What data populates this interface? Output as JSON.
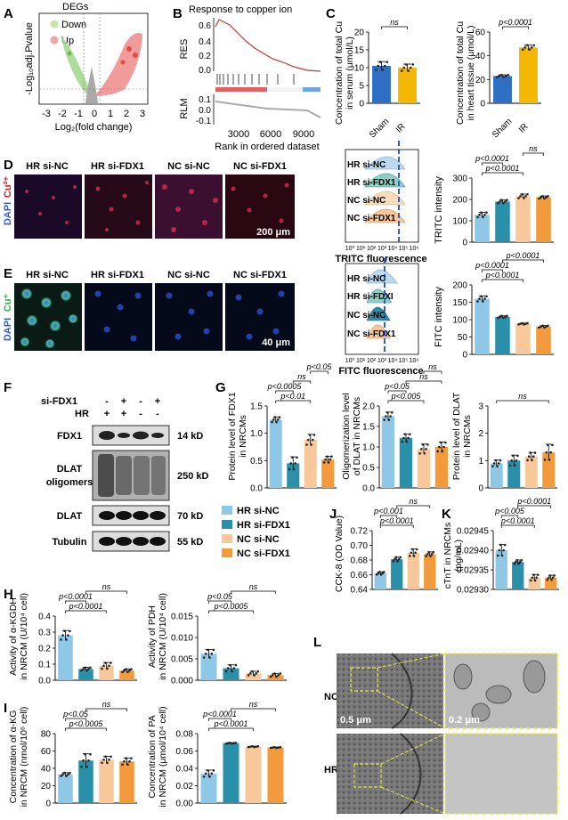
{
  "panels": {
    "A": {
      "letter": "A",
      "title": "DEGs",
      "legend": [
        {
          "label": "Down",
          "color": "#c3e6a3"
        },
        {
          "label": "Up",
          "color": "#f4a3a3"
        }
      ],
      "xlabel": "Log₂(fold change)",
      "ylabel": "-Log₁₀adj.Pvalue",
      "xticks": [
        "-3",
        "-2",
        "-1",
        "0",
        "1",
        "2",
        "3"
      ]
    },
    "B": {
      "letter": "B",
      "title": "Response to copper ion",
      "res_label": "RES",
      "rlm_label": "RLM",
      "res_ticks": [
        "0.6",
        "0.4",
        "0.2",
        "0.0"
      ],
      "rlm_ticks": [
        "0.1",
        "0.0",
        "-0.1"
      ],
      "xticks": [
        "3000",
        "6000",
        "9000"
      ],
      "xlabel": "Rank in ordered dataset"
    },
    "C": {
      "letter": "C",
      "left": {
        "ylabel1": "Concentration of total Cu",
        "ylabel2": "in serum (μmol/L)",
        "yticks": [
          "0",
          "5",
          "10",
          "15",
          "20"
        ],
        "sig": "ns"
      },
      "right": {
        "ylabel1": "Concentration of total Cu",
        "ylabel2": "in heart tissue (μmol/L)",
        "yticks": [
          "0",
          "20",
          "40",
          "60"
        ],
        "sig": "p<0.0001"
      },
      "groups": [
        "Sham",
        "IR"
      ]
    },
    "D": {
      "letter": "D",
      "stain": "Cu²⁺",
      "dapi": "DAPI",
      "images": [
        "HR si-NC",
        "HR si-FDX1",
        "NC si-NC",
        "NC si-FDX1"
      ],
      "scale": "200 μm",
      "flow_labels": [
        "HR si-NC",
        "HR si-FDX1",
        "NC si-NC",
        "NC si-FDX1"
      ],
      "flow_xlabel": "TRITC fluorescence",
      "flow_ticks": [
        "10⁰",
        "10¹",
        "10²",
        "10³",
        "10⁴",
        "10⁵",
        "10⁶"
      ],
      "bar_ylabel": "TRITC intensity",
      "bar_yticks": [
        "0",
        "100",
        "200",
        "300"
      ],
      "sigs": [
        "p<0.0001",
        "p<0.0001",
        "ns"
      ]
    },
    "E": {
      "letter": "E",
      "stain": "Cu⁺",
      "dapi": "DAPI",
      "images": [
        "HR si-NC",
        "HR si-FDX1",
        "NC si-NC",
        "NC si-FDX1"
      ],
      "scale": "40 μm",
      "flow_labels": [
        "HR si-NC",
        "HR si-FDXI",
        "NC si-NC",
        "NC si-FDX1"
      ],
      "flow_xlabel": "FITC fluorescence",
      "flow_ticks": [
        "10⁰",
        "10¹",
        "10²",
        "10³",
        "10⁴",
        "10⁵",
        "10⁶"
      ],
      "bar_ylabel": "FITC intensity",
      "bar_yticks": [
        "0",
        "50",
        "100",
        "150",
        "200"
      ],
      "sigs": [
        "p<0.0001",
        "p<0.0001",
        "p<0.0001"
      ]
    },
    "F": {
      "letter": "F",
      "row1": "si-FDX1",
      "row2": "HR",
      "row1_signs": [
        "-",
        "+",
        "-",
        "+"
      ],
      "row2_signs": [
        "+",
        "+",
        "-",
        "-"
      ],
      "blots": [
        {
          "label": "FDX1",
          "kd": "14 kD"
        },
        {
          "label": "DLAT oligomers",
          "kd": "250 kD"
        },
        {
          "label": "DLAT",
          "kd": "70 kD"
        },
        {
          "label": "Tubulin",
          "kd": "55 kD"
        }
      ]
    },
    "G": {
      "letter": "G",
      "c1": {
        "ylabel1": "Protein level of FDX1",
        "ylabel2": "in NRCMs",
        "yticks": [
          "0.0",
          "0.5",
          "1.0",
          "1.5"
        ],
        "sigs": [
          "p<0.01",
          "p<0.0005",
          "ns",
          "p<0.05"
        ]
      },
      "c2": {
        "ylabel1": "Oligomerization level",
        "ylabel2": "of DLAT in NRCMs",
        "yticks": [
          "0.0",
          "0.5",
          "1.0",
          "1.5",
          "2.0"
        ],
        "sigs": [
          "p<0.005",
          "p<0.05",
          "ns",
          "ns"
        ]
      },
      "c3": {
        "ylabel1": "Protein level of DLAT",
        "ylabel2": "in NRCMs",
        "yticks": [
          "0",
          "1",
          "2",
          "3"
        ],
        "sigs": [
          "ns"
        ]
      }
    },
    "legend": [
      {
        "label": "HR si-NC",
        "color": "#8ec8e6"
      },
      {
        "label": "HR si-FDX1",
        "color": "#2a8fa8"
      },
      {
        "label": "NC si-NC",
        "color": "#f8c89a"
      },
      {
        "label": "NC si-FDX1",
        "color": "#f29a3c"
      }
    ],
    "J": {
      "letter": "J",
      "ylabel": "CCK-8 (OD Value)",
      "yticks": [
        "0.64",
        "0.66",
        "0.68",
        "0.70",
        "0.72"
      ],
      "sigs": [
        "p<0.0001",
        "p<0.001",
        "ns"
      ]
    },
    "K": {
      "letter": "K",
      "ylabel1": "cTnT in NRCMs",
      "ylabel2": "(pg/mL)",
      "yticks": [
        "0.02930",
        "0.02935",
        "0.02940",
        "0.02945"
      ],
      "sigs": [
        "p<0.0001",
        "p<0.005",
        "p<0.0001"
      ]
    },
    "H": {
      "letter": "H",
      "c1": {
        "ylabel1": "Activity of α-KGDH",
        "ylabel2": "in NRCM (U/10⁴ cell)",
        "yticks": [
          "0.0",
          "0.1",
          "0.2",
          "0.3",
          "0.4"
        ],
        "sigs": [
          "p<0.0001",
          "p<0.0001",
          "ns"
        ]
      },
      "c2": {
        "ylabel1": "Activity of PDH",
        "ylabel2": "in NRCM (U/10⁴ cell)",
        "yticks": [
          "0.000",
          "0.005",
          "0.010",
          "0.015"
        ],
        "sigs": [
          "p<0.0005",
          "p<0.05",
          "ns"
        ]
      }
    },
    "I": {
      "letter": "I",
      "c1": {
        "ylabel1": "Concentration of α-KG",
        "ylabel2": "in NRCM (nmol/10⁶ cell)",
        "yticks": [
          "0",
          "20",
          "40",
          "60",
          "80"
        ],
        "sigs": [
          "p<0.0005",
          "p<0.05",
          "ns"
        ]
      },
      "c2": {
        "ylabel1": "Concentration of PA",
        "ylabel2": "in NRCM (μmol/10⁴ cell)",
        "yticks": [
          "0.00",
          "0.02",
          "0.04",
          "0.06",
          "0.08"
        ],
        "sigs": [
          "p<0.0001",
          "p<0.0001",
          "ns"
        ]
      }
    },
    "L": {
      "letter": "L",
      "rows": [
        "NC",
        "HR"
      ],
      "scales": [
        "0.5 μm",
        "0.2 μm"
      ]
    }
  },
  "chart_data": [
    {
      "id": "C-serum",
      "type": "bar",
      "categories": [
        "Sham",
        "IR"
      ],
      "values": [
        10.5,
        10.0
      ],
      "errors": [
        1.2,
        1.0
      ],
      "ylim": [
        0,
        20
      ],
      "colors": [
        "#2e6fc4",
        "#f5b800"
      ]
    },
    {
      "id": "C-heart",
      "type": "bar",
      "categories": [
        "Sham",
        "IR"
      ],
      "values": [
        23,
        47
      ],
      "errors": [
        1,
        2
      ],
      "ylim": [
        0,
        60
      ],
      "colors": [
        "#2e6fc4",
        "#f5b800"
      ]
    },
    {
      "id": "D-TRITC",
      "type": "bar",
      "categories": [
        "HR si-NC",
        "HR si-FDX1",
        "NC si-NC",
        "NC si-FDX1"
      ],
      "values": [
        128,
        190,
        215,
        210
      ],
      "errors": [
        12,
        8,
        10,
        6
      ],
      "ylim": [
        0,
        300
      ]
    },
    {
      "id": "E-FITC",
      "type": "bar",
      "categories": [
        "HR si-NC",
        "HR si-FDX1",
        "NC si-NC",
        "NC si-FDX1"
      ],
      "values": [
        160,
        108,
        88,
        80
      ],
      "errors": [
        8,
        3,
        2,
        3
      ],
      "ylim": [
        0,
        200
      ]
    },
    {
      "id": "G-FDX1",
      "type": "bar",
      "categories": [
        "HR si-NC",
        "HR si-FDX1",
        "NC si-NC",
        "NC si-FDX1"
      ],
      "values": [
        1.25,
        0.45,
        0.88,
        0.52
      ],
      "errors": [
        0.05,
        0.12,
        0.1,
        0.06
      ],
      "ylim": [
        0,
        1.5
      ]
    },
    {
      "id": "G-DLATolig",
      "type": "bar",
      "categories": [
        "HR si-NC",
        "HR si-FDX1",
        "NC si-NC",
        "NC si-FDX1"
      ],
      "values": [
        1.75,
        1.22,
        0.95,
        1.0
      ],
      "errors": [
        0.1,
        0.1,
        0.12,
        0.12
      ],
      "ylim": [
        0,
        2.0
      ]
    },
    {
      "id": "G-DLAT",
      "type": "bar",
      "categories": [
        "HR si-NC",
        "HR si-FDX1",
        "NC si-NC",
        "NC si-FDX1"
      ],
      "values": [
        0.9,
        1.0,
        1.15,
        1.3
      ],
      "errors": [
        0.12,
        0.2,
        0.15,
        0.3
      ],
      "ylim": [
        0,
        3
      ]
    },
    {
      "id": "J-CCK8",
      "type": "bar",
      "categories": [
        "HR si-NC",
        "HR si-FDX1",
        "NC si-NC",
        "NC si-FDX1"
      ],
      "values": [
        0.662,
        0.681,
        0.69,
        0.688
      ],
      "errors": [
        0.002,
        0.003,
        0.005,
        0.003
      ],
      "ylim": [
        0.64,
        0.72
      ]
    },
    {
      "id": "K-cTnT",
      "type": "bar",
      "categories": [
        "HR si-NC",
        "HR si-FDX1",
        "NC si-NC",
        "NC si-FDX1"
      ],
      "values": [
        0.0294,
        0.02937,
        0.02933,
        0.02933
      ],
      "errors": [
        1.5e-05,
        5e-06,
        8e-06,
        6e-06
      ],
      "ylim": [
        0.0293,
        0.02945
      ]
    },
    {
      "id": "H-aKGDH",
      "type": "bar",
      "categories": [
        "HR si-NC",
        "HR si-FDX1",
        "NC si-NC",
        "NC si-FDX1"
      ],
      "values": [
        0.28,
        0.07,
        0.09,
        0.06
      ],
      "errors": [
        0.03,
        0.01,
        0.02,
        0.01
      ],
      "ylim": [
        0,
        0.4
      ]
    },
    {
      "id": "H-PDH",
      "type": "bar",
      "categories": [
        "HR si-NC",
        "HR si-FDX1",
        "NC si-NC",
        "NC si-FDX1"
      ],
      "values": [
        0.0062,
        0.0028,
        0.0016,
        0.0012
      ],
      "errors": [
        0.001,
        0.0008,
        0.0005,
        0.0004
      ],
      "ylim": [
        0,
        0.015
      ]
    },
    {
      "id": "I-aKG",
      "type": "bar",
      "categories": [
        "HR si-NC",
        "HR si-FDX1",
        "NC si-NC",
        "NC si-FDX1"
      ],
      "values": [
        33,
        49,
        50,
        48
      ],
      "errors": [
        2,
        8,
        4,
        4
      ],
      "ylim": [
        0,
        80
      ]
    },
    {
      "id": "I-PA",
      "type": "bar",
      "categories": [
        "HR si-NC",
        "HR si-FDX1",
        "NC si-NC",
        "NC si-FDX1"
      ],
      "values": [
        0.034,
        0.069,
        0.065,
        0.064
      ],
      "errors": [
        0.004,
        0.0005,
        0.0005,
        0.0005
      ],
      "ylim": [
        0,
        0.08
      ]
    }
  ]
}
